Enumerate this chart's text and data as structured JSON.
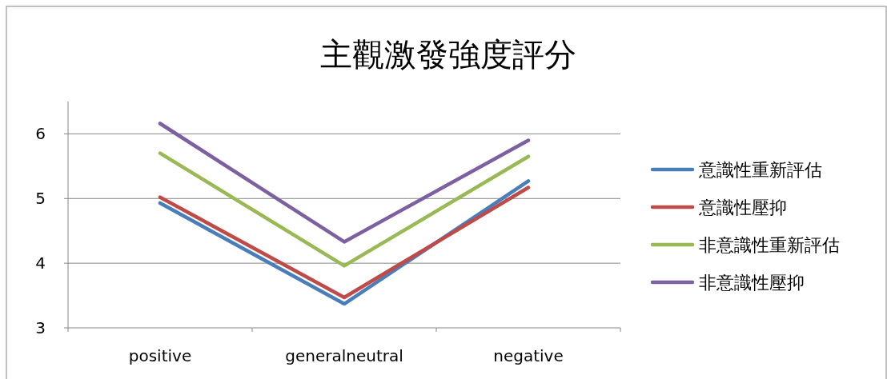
{
  "chart_data": {
    "type": "line",
    "title": "主觀激發強度評分",
    "categories": [
      "positive",
      "generalneutral",
      "negative"
    ],
    "series": [
      {
        "name": "意識性重新評估",
        "color": "#4a7ebb",
        "values": [
          4.93,
          3.37,
          5.27
        ]
      },
      {
        "name": "意識性壓抑",
        "color": "#be4b48",
        "values": [
          5.02,
          3.47,
          5.17
        ]
      },
      {
        "name": "非意識性重新評估",
        "color": "#98b954",
        "values": [
          5.7,
          3.96,
          5.65
        ]
      },
      {
        "name": "非意識性壓抑",
        "color": "#7d60a0",
        "values": [
          6.16,
          4.33,
          5.9
        ]
      }
    ],
    "ylim": [
      3,
      6.5
    ],
    "yticks": [
      3,
      4,
      5,
      6
    ],
    "grid": "y",
    "legend": "right"
  }
}
